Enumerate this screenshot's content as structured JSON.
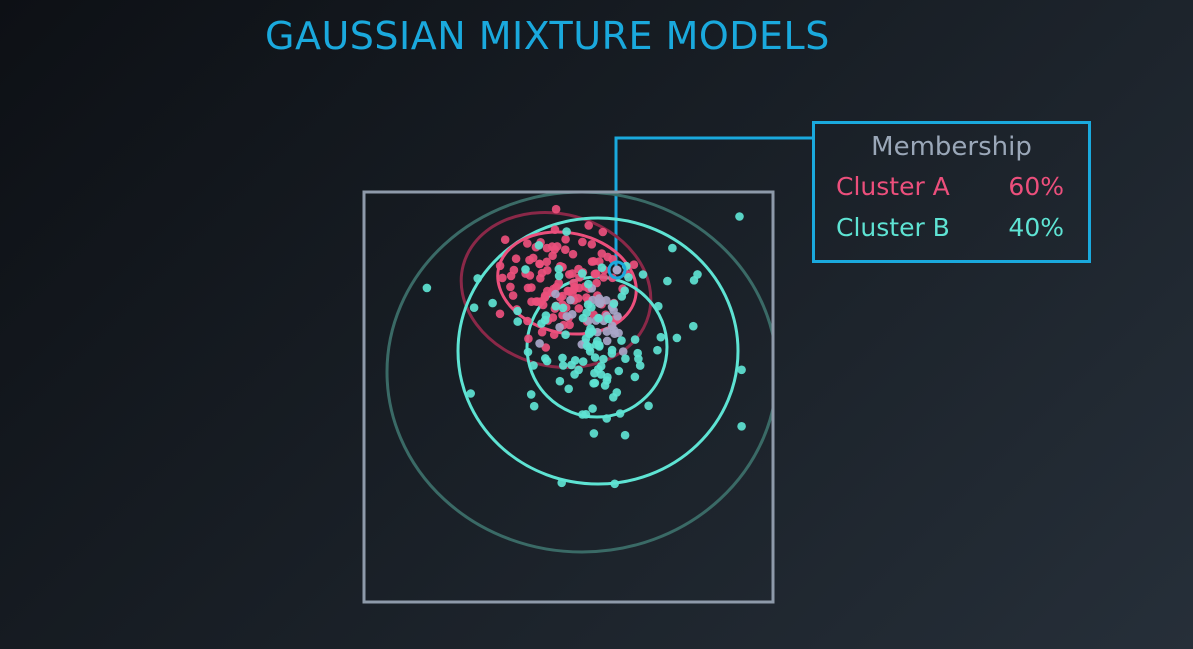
{
  "title": "GAUSSIAN MIXTURE MODELS",
  "membership": {
    "title": "Membership",
    "clusters": [
      {
        "name": "Cluster A",
        "value": "60%",
        "fraction": 0.6
      },
      {
        "name": "Cluster B",
        "value": "40%",
        "fraction": 0.4
      }
    ]
  },
  "colors": {
    "title": "#1aa9dd",
    "frame": "#1aa9dd",
    "legend_title": "#9aa7b8",
    "cluster_a": "#ec4f7c",
    "cluster_b": "#5ee3d3",
    "cluster_b_outer": "#3a6a66",
    "cluster_a_outer": "#8a2848",
    "plot_border": "#8e9aaa",
    "highlight_ring": "#1aa9dd",
    "mixed_point": "#a8a6c8"
  }
}
